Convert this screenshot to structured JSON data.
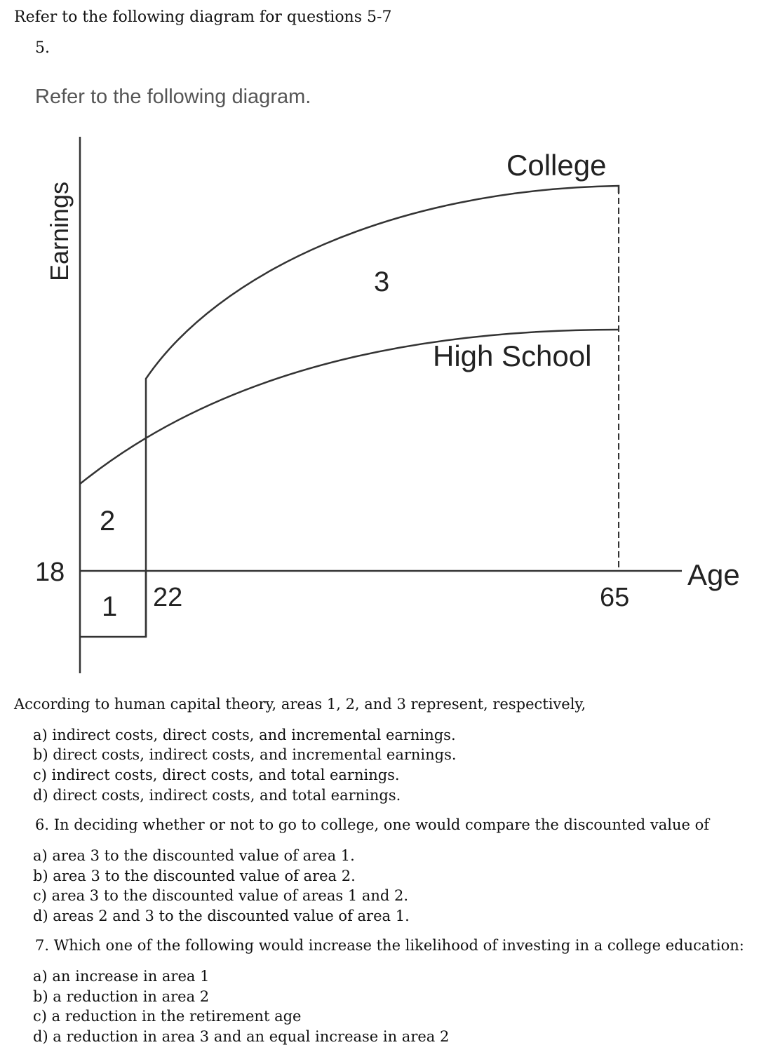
{
  "intro": "Refer to the following diagram for questions 5-7",
  "question5": {
    "number": "5.",
    "prompt": "Refer to the following diagram.",
    "stem": "According to human capital theory, areas 1, 2, and 3 represent, respectively,",
    "options": [
      "a) indirect costs, direct costs, and incremental earnings.",
      "b) direct costs, indirect costs, and incremental earnings.",
      "c) indirect costs, direct costs, and total earnings.",
      "d) direct costs, indirect costs, and total earnings."
    ]
  },
  "question6": {
    "stem": "6. In deciding whether or not to go to college, one would compare the discounted value of",
    "options": [
      "a) area 3 to the discounted value of area 1.",
      "b) area 3 to the discounted value of area 2.",
      "c) area 3 to the discounted value of areas 1 and 2.",
      "d) areas 2 and 3 to the discounted value of area 1."
    ]
  },
  "question7": {
    "stem": "7. Which one of the following would increase the likelihood of investing in a college education:",
    "options": [
      "a) an increase in area 1",
      "b) a reduction in area 2",
      "c) a reduction in the retirement age",
      "d) a reduction in area 3 and an equal increase in area 2"
    ]
  },
  "diagram": {
    "y_axis_label": "Earnings",
    "x_axis_label": "Age",
    "curve_labels": {
      "college": "College",
      "high_school": "High School"
    },
    "area_labels": [
      "1",
      "2",
      "3"
    ],
    "age_ticks": {
      "start": "18",
      "college_start": "22",
      "retirement": "65"
    },
    "line_color": "#333333"
  }
}
